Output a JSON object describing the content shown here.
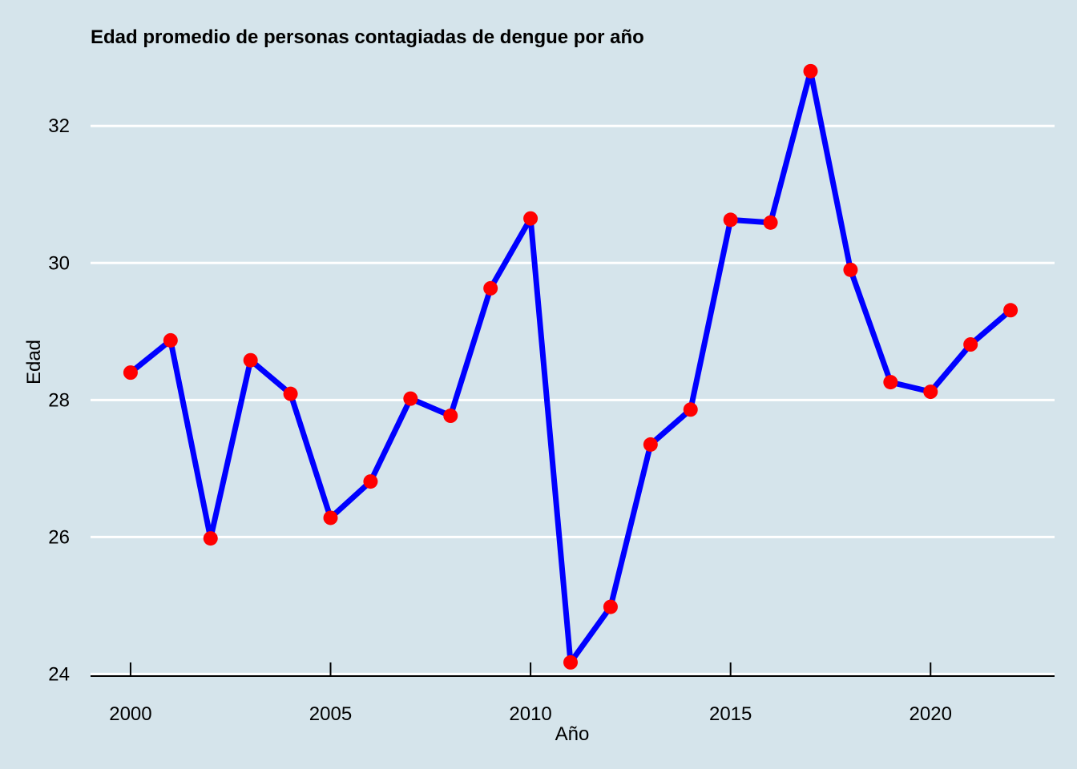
{
  "chart_data": {
    "type": "line",
    "title": "Edad promedio de personas contagiadas de dengue por año",
    "xlabel": "Año",
    "ylabel": "Edad",
    "x": [
      2000,
      2001,
      2002,
      2003,
      2004,
      2005,
      2006,
      2007,
      2008,
      2009,
      2010,
      2011,
      2012,
      2013,
      2014,
      2015,
      2016,
      2017,
      2018,
      2019,
      2020,
      2021,
      2022
    ],
    "series": [
      {
        "values": [
          28.4,
          28.87,
          25.98,
          28.58,
          28.09,
          26.28,
          26.81,
          28.02,
          27.77,
          29.63,
          30.65,
          24.17,
          24.98,
          27.35,
          27.86,
          30.63,
          30.59,
          32.8,
          29.9,
          28.26,
          28.12,
          28.81,
          29.31
        ],
        "line_color": "#0000ff",
        "point_color": "#ff0000"
      }
    ],
    "x_ticks": [
      "2000",
      "2005",
      "2010",
      "2015",
      "2020"
    ],
    "y_ticks": [
      "24",
      "26",
      "28",
      "30",
      "32"
    ],
    "xlim": [
      1999,
      2023.1
    ],
    "ylim": [
      23.97,
      33.02
    ],
    "grid": "horizontal major lines",
    "legend": "none",
    "background_color": "#d5e4eb",
    "grid_color": "#ffffff"
  }
}
